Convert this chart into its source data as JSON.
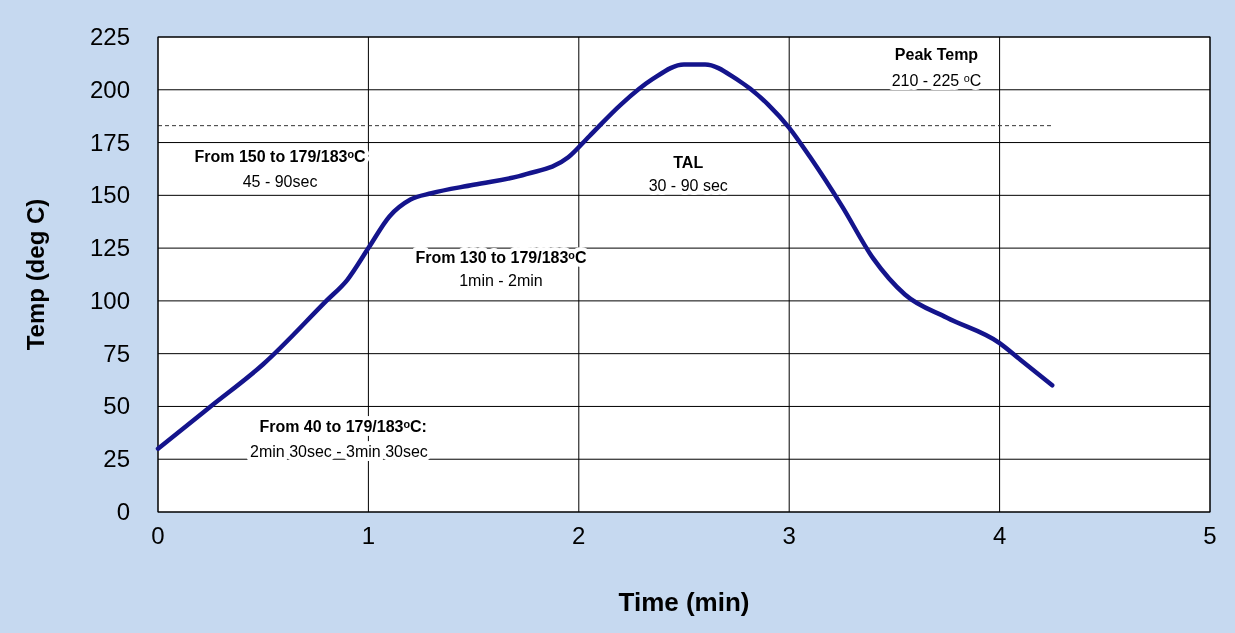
{
  "chart_data": {
    "type": "line",
    "xlabel": "Time (min)",
    "ylabel": "Temp (deg C)",
    "xlim": [
      0,
      5
    ],
    "xticks": [
      0,
      1,
      2,
      3,
      4,
      5
    ],
    "ylim": [
      0,
      225
    ],
    "yticks": [
      0,
      25,
      50,
      75,
      100,
      125,
      150,
      175,
      200,
      225
    ],
    "grid": true,
    "marker": "none",
    "line_style": "solid",
    "series": [
      {
        "color": "#14148c",
        "x": [
          0,
          0.25,
          0.5,
          0.8,
          0.9,
          1.0,
          1.1,
          1.2,
          1.3,
          1.5,
          1.75,
          1.95,
          2.05,
          2.2,
          2.35,
          2.5,
          2.6,
          2.75,
          2.9,
          3.0,
          3.1,
          3.25,
          3.4,
          3.55,
          3.75,
          4.0,
          4.1,
          4.25
        ],
        "values": [
          30,
          50,
          70,
          100,
          110,
          125,
          140,
          148,
          151,
          155,
          160,
          168,
          178,
          193,
          205,
          212,
          212,
          205,
          193,
          182,
          168,
          145,
          120,
          103,
          92,
          80,
          72,
          60
        ]
      }
    ],
    "ref_lines": [
      {
        "axis": "y",
        "value": 183,
        "line_style": "dashed",
        "color": "#333333"
      }
    ],
    "annotations": [
      "From 150 to 179/183ᵒC",
      "45 - 90sec",
      "From 130 to 179/183ᵒC",
      "1min - 2min",
      "TAL",
      "30 - 90 sec",
      "Peak Temp",
      "210 - 225 ᵒC",
      "From 40 to 179/183ᵒC:",
      "2min 30sec - 3min 30sec"
    ]
  }
}
